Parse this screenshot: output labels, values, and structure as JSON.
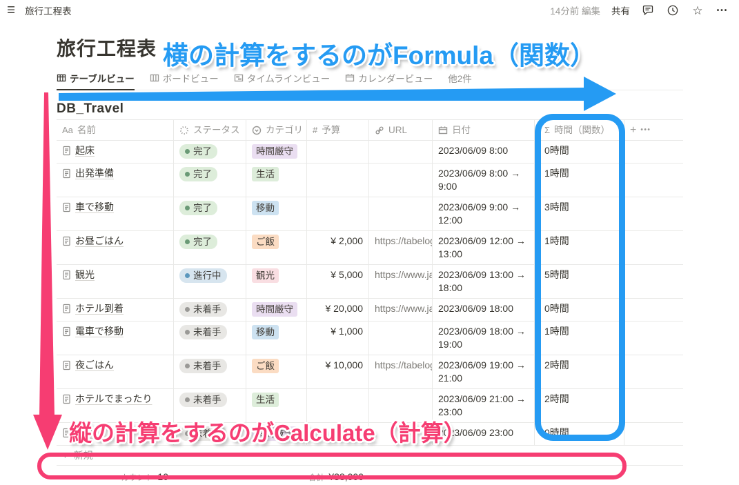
{
  "topbar": {
    "title": "旅行工程表",
    "edited_label": "14分前 編集",
    "share_label": "共有"
  },
  "icons": {
    "hamburger": "☰",
    "star": "☆",
    "more": "•••",
    "plus": "+",
    "sigma": "Σ",
    "number": "#",
    "text": "Aa"
  },
  "page": {
    "title": "旅行工程表",
    "db_title": "DB_Travel",
    "tabs": [
      {
        "label": "テーブルビュー",
        "active": true
      },
      {
        "label": "ボードビュー",
        "active": false
      },
      {
        "label": "タイムラインビュー",
        "active": false
      },
      {
        "label": "カレンダービュー",
        "active": false
      },
      {
        "label": "他2件",
        "active": false
      }
    ],
    "new_row_label": "新規"
  },
  "table": {
    "columns": [
      {
        "id": "name",
        "label": "名前"
      },
      {
        "id": "status",
        "label": "ステータス"
      },
      {
        "id": "category",
        "label": "カテゴリ"
      },
      {
        "id": "budget",
        "label": "予算"
      },
      {
        "id": "url",
        "label": "URL"
      },
      {
        "id": "date",
        "label": "日付"
      },
      {
        "id": "time",
        "label": "時間（関数）"
      }
    ],
    "rows": [
      {
        "name": "起床",
        "status": "完了",
        "status_type": "done",
        "category": "時間厳守",
        "category_color": "purple",
        "budget": "",
        "url": "",
        "date_start": "2023/06/09 8:00",
        "date_end": "",
        "time": "0時間"
      },
      {
        "name": "出発準備",
        "status": "完了",
        "status_type": "done",
        "category": "生活",
        "category_color": "green",
        "budget": "",
        "url": "",
        "date_start": "2023/06/09 8:00",
        "date_end": "9:00",
        "time": "1時間"
      },
      {
        "name": "車で移動",
        "status": "完了",
        "status_type": "done",
        "category": "移動",
        "category_color": "blue",
        "budget": "",
        "url": "",
        "date_start": "2023/06/09 9:00",
        "date_end": "12:00",
        "time": "3時間"
      },
      {
        "name": "お昼ごはん",
        "status": "完了",
        "status_type": "done",
        "category": "ご飯",
        "category_color": "orange",
        "budget": "¥ 2,000",
        "url": "https://tabelog",
        "date_start": "2023/06/09 12:00",
        "date_end": "13:00",
        "time": "1時間"
      },
      {
        "name": "観光",
        "status": "進行中",
        "status_type": "in_progress",
        "category": "観光",
        "category_color": "pink",
        "budget": "¥ 5,000",
        "url": "https://www.ja",
        "date_start": "2023/06/09 13:00",
        "date_end": "18:00",
        "time": "5時間"
      },
      {
        "name": "ホテル到着",
        "status": "未着手",
        "status_type": "todo",
        "category": "時間厳守",
        "category_color": "purple",
        "budget": "¥ 20,000",
        "url": "https://www.ja",
        "date_start": "2023/06/09 18:00",
        "date_end": "",
        "time": "0時間"
      },
      {
        "name": "電車で移動",
        "status": "未着手",
        "status_type": "todo",
        "category": "移動",
        "category_color": "blue",
        "budget": "¥ 1,000",
        "url": "",
        "date_start": "2023/06/09 18:00",
        "date_end": "19:00",
        "time": "1時間"
      },
      {
        "name": "夜ごはん",
        "status": "未着手",
        "status_type": "todo",
        "category": "ご飯",
        "category_color": "orange",
        "budget": "¥ 10,000",
        "url": "https://tabelog",
        "date_start": "2023/06/09 19:00",
        "date_end": "21:00",
        "time": "2時間"
      },
      {
        "name": "ホテルでまったり",
        "status": "未着手",
        "status_type": "todo",
        "category": "生活",
        "category_color": "green",
        "budget": "",
        "url": "",
        "date_start": "2023/06/09 21:00",
        "date_end": "23:00",
        "time": "2時間"
      },
      {
        "name": "就寝",
        "status": "未着手",
        "status_type": "todo",
        "category": "時間厳守",
        "category_color": "purple",
        "budget": "",
        "url": "",
        "date_start": "2023/06/09 23:00",
        "date_end": "",
        "time": "0時間"
      }
    ],
    "footer": {
      "count_label": "カウント",
      "count_value": "10",
      "sum_label": "合計",
      "sum_value": "¥38,000"
    }
  },
  "palette": {
    "status": {
      "done": {
        "bg": "#ddedda",
        "dot": "#6a9a76"
      },
      "in_progress": {
        "bg": "#d7e5ef",
        "dot": "#5b97bd"
      },
      "todo": {
        "bg": "#e8e7e4",
        "dot": "#9a9996"
      }
    },
    "category": {
      "purple": "#eadef1",
      "green": "#ddedda",
      "blue": "#cde2f1",
      "orange": "#fbdcc3",
      "pink": "#f9dee2"
    },
    "annotation_blue": "#259bf3",
    "annotation_pink": "#f63d72"
  },
  "annotations": {
    "formula_label": "横の計算をするのがFormula（関数）",
    "calculate_label": "縦の計算をするのがCalculate（計算）"
  }
}
